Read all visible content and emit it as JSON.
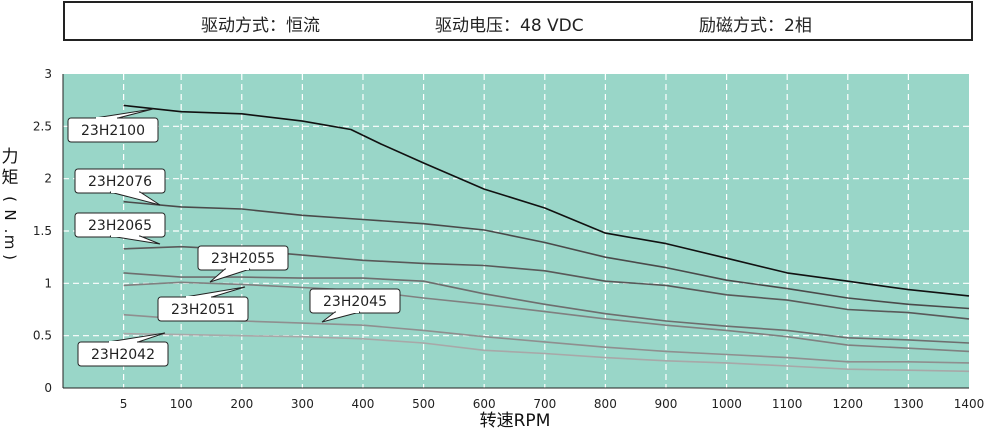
{
  "header": {
    "items": [
      "驱动方式：恒流",
      "驱动电压：48 VDC",
      "励磁方式：2相"
    ]
  },
  "chart_data": {
    "type": "line",
    "xlabel": "转速RPM",
    "ylabel_chars": [
      "力",
      "矩",
      "(",
      "N",
      ".",
      "m",
      ")"
    ],
    "xlim": [
      -95,
      1400
    ],
    "ylim": [
      0,
      3
    ],
    "x_ticks": [
      5,
      100,
      200,
      300,
      400,
      500,
      600,
      700,
      800,
      900,
      1000,
      1100,
      1200,
      1300,
      1400
    ],
    "y_ticks": [
      0,
      0.5,
      1,
      1.5,
      2,
      2.5,
      3
    ],
    "y_tick_labels": [
      "0",
      "0.5",
      "1",
      "1.5",
      "2",
      "2.5",
      "3"
    ],
    "grid": true,
    "background": "#99d6c8",
    "series": [
      {
        "name": "23H2100",
        "color": "#111111",
        "points": [
          [
            5,
            2.7
          ],
          [
            100,
            2.64
          ],
          [
            200,
            2.62
          ],
          [
            300,
            2.55
          ],
          [
            380,
            2.47
          ],
          [
            430,
            2.33
          ],
          [
            500,
            2.15
          ],
          [
            600,
            1.9
          ],
          [
            700,
            1.72
          ],
          [
            800,
            1.48
          ],
          [
            900,
            1.38
          ],
          [
            1000,
            1.24
          ],
          [
            1100,
            1.1
          ],
          [
            1200,
            1.02
          ],
          [
            1300,
            0.94
          ],
          [
            1400,
            0.88
          ]
        ]
      },
      {
        "name": "23H2076",
        "color": "#4a4a4a",
        "points": [
          [
            5,
            1.78
          ],
          [
            100,
            1.73
          ],
          [
            200,
            1.71
          ],
          [
            300,
            1.65
          ],
          [
            400,
            1.61
          ],
          [
            500,
            1.57
          ],
          [
            600,
            1.51
          ],
          [
            700,
            1.39
          ],
          [
            800,
            1.25
          ],
          [
            900,
            1.15
          ],
          [
            1000,
            1.03
          ],
          [
            1100,
            0.95
          ],
          [
            1200,
            0.86
          ],
          [
            1300,
            0.8
          ],
          [
            1400,
            0.76
          ]
        ]
      },
      {
        "name": "23H2065",
        "color": "#595959",
        "points": [
          [
            5,
            1.33
          ],
          [
            100,
            1.35
          ],
          [
            200,
            1.32
          ],
          [
            300,
            1.27
          ],
          [
            400,
            1.22
          ],
          [
            500,
            1.19
          ],
          [
            600,
            1.17
          ],
          [
            700,
            1.12
          ],
          [
            800,
            1.02
          ],
          [
            900,
            0.98
          ],
          [
            1000,
            0.89
          ],
          [
            1100,
            0.84
          ],
          [
            1200,
            0.75
          ],
          [
            1300,
            0.72
          ],
          [
            1400,
            0.66
          ]
        ]
      },
      {
        "name": "23H2055",
        "color": "#6e6e6e",
        "points": [
          [
            5,
            1.1
          ],
          [
            100,
            1.06
          ],
          [
            200,
            1.06
          ],
          [
            300,
            1.05
          ],
          [
            400,
            1.05
          ],
          [
            500,
            1.02
          ],
          [
            600,
            0.9
          ],
          [
            700,
            0.8
          ],
          [
            800,
            0.71
          ],
          [
            900,
            0.64
          ],
          [
            1000,
            0.59
          ],
          [
            1100,
            0.55
          ],
          [
            1200,
            0.48
          ],
          [
            1300,
            0.46
          ],
          [
            1400,
            0.43
          ]
        ]
      },
      {
        "name": "23H2045",
        "color": "#808080",
        "points": [
          [
            5,
            0.98
          ],
          [
            100,
            1.01
          ],
          [
            200,
            0.99
          ],
          [
            300,
            0.96
          ],
          [
            400,
            0.93
          ],
          [
            500,
            0.86
          ],
          [
            600,
            0.8
          ],
          [
            700,
            0.73
          ],
          [
            800,
            0.66
          ],
          [
            900,
            0.6
          ],
          [
            1000,
            0.55
          ],
          [
            1100,
            0.49
          ],
          [
            1200,
            0.41
          ],
          [
            1300,
            0.38
          ],
          [
            1400,
            0.35
          ]
        ]
      },
      {
        "name": "23H2051",
        "color": "#8f8f8f",
        "points": [
          [
            5,
            0.7
          ],
          [
            100,
            0.66
          ],
          [
            200,
            0.64
          ],
          [
            300,
            0.62
          ],
          [
            400,
            0.6
          ],
          [
            500,
            0.55
          ],
          [
            600,
            0.49
          ],
          [
            700,
            0.44
          ],
          [
            800,
            0.39
          ],
          [
            900,
            0.35
          ],
          [
            1000,
            0.32
          ],
          [
            1100,
            0.29
          ],
          [
            1200,
            0.25
          ],
          [
            1300,
            0.25
          ],
          [
            1400,
            0.24
          ]
        ]
      },
      {
        "name": "23H2042",
        "color": "#a8a8a8",
        "points": [
          [
            5,
            0.52
          ],
          [
            100,
            0.51
          ],
          [
            200,
            0.5
          ],
          [
            300,
            0.49
          ],
          [
            400,
            0.47
          ],
          [
            500,
            0.43
          ],
          [
            600,
            0.36
          ],
          [
            700,
            0.33
          ],
          [
            800,
            0.29
          ],
          [
            900,
            0.26
          ],
          [
            1000,
            0.24
          ],
          [
            1100,
            0.21
          ],
          [
            1200,
            0.18
          ],
          [
            1300,
            0.17
          ],
          [
            1400,
            0.16
          ]
        ]
      }
    ]
  }
}
